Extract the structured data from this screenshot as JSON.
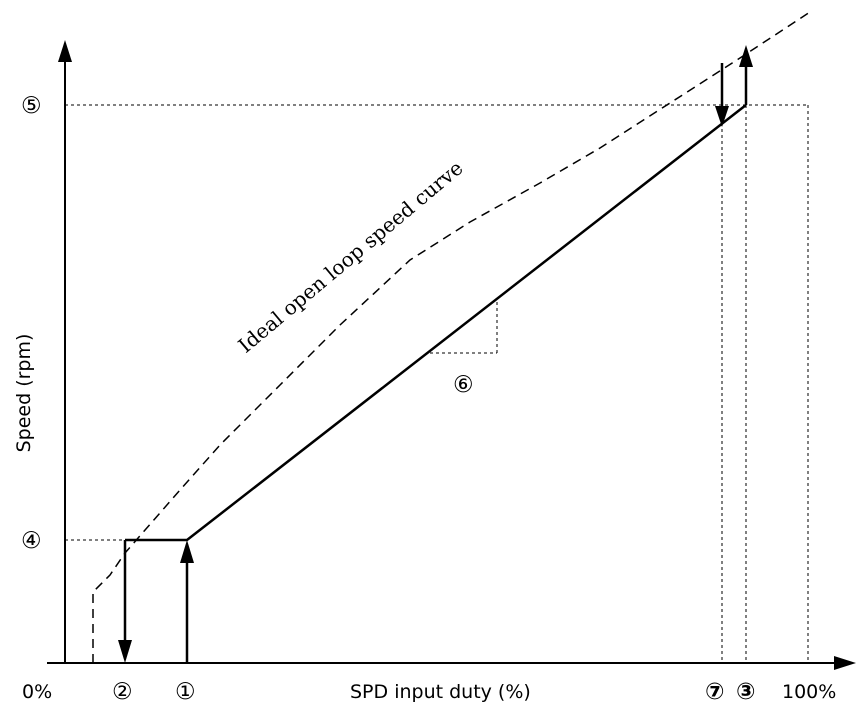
{
  "diagram": {
    "x_axis_label": "SPD input duty (%)",
    "y_axis_label": "Speed (rpm)",
    "x_ticks": {
      "zero": "0%",
      "hundred": "100%",
      "m1": "①",
      "m2": "②",
      "m3": "③",
      "m7": "⑦"
    },
    "y_markers": {
      "m4": "④",
      "m5": "⑤"
    },
    "slope_marker": "⑥",
    "curve_label": "Ideal open loop speed curve",
    "colors": {
      "line": "#000000",
      "background": "#ffffff"
    }
  }
}
